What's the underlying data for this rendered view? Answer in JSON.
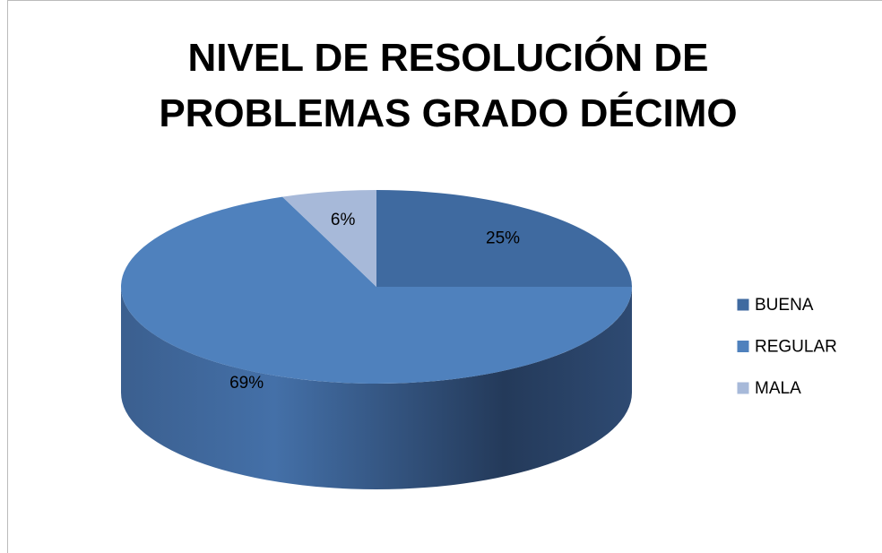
{
  "chart_data": {
    "type": "pie",
    "title": "NIVEL DE RESOLUCIÓN DE PROBLEMAS GRADO DÉCIMO",
    "categories": [
      "BUENA",
      "REGULAR",
      "MALA"
    ],
    "values": [
      25,
      69,
      6
    ],
    "value_labels": [
      "25%",
      "69%",
      "6%"
    ],
    "colors": [
      "#3f6aa0",
      "#4f81bd",
      "#a7b9d9"
    ],
    "legend": "right"
  }
}
